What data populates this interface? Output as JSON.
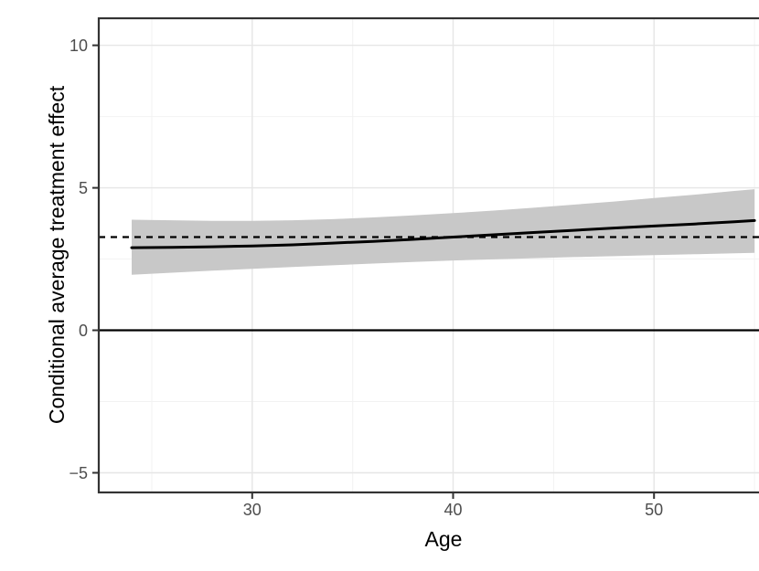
{
  "chart_data": {
    "type": "line",
    "title": "",
    "xlabel": "Age",
    "ylabel": "Conditional average treatment effect",
    "xlim": [
      22.36,
      56.68
    ],
    "ylim": [
      -5.69,
      10.95
    ],
    "x_major_ticks": [
      30,
      40,
      50
    ],
    "x_minor_ticks": [
      25,
      35,
      45,
      55
    ],
    "y_major_ticks": [
      -5,
      0,
      5,
      10
    ],
    "y_minor_ticks": [
      -2.5,
      2.5,
      7.5
    ],
    "grid": true,
    "legend": "none",
    "reference_lines": {
      "zero_line_y": 0,
      "ate_dashed_line_y": 3.27
    },
    "series": [
      {
        "name": "conditional-average-treatment-effect",
        "style": "solid",
        "x": [
          24,
          26,
          28,
          30,
          32,
          34,
          36,
          38,
          40,
          42,
          44,
          46,
          48,
          50,
          52,
          54,
          55
        ],
        "y": [
          2.9,
          2.91,
          2.93,
          2.96,
          3.0,
          3.06,
          3.12,
          3.19,
          3.27,
          3.35,
          3.43,
          3.51,
          3.59,
          3.66,
          3.73,
          3.81,
          3.85
        ]
      }
    ],
    "ribbon": {
      "name": "confidence-band",
      "x": [
        24,
        26,
        28,
        30,
        32,
        34,
        36,
        38,
        40,
        42,
        44,
        46,
        48,
        50,
        52,
        54,
        55
      ],
      "upper": [
        3.88,
        3.86,
        3.84,
        3.84,
        3.86,
        3.9,
        3.96,
        4.03,
        4.11,
        4.2,
        4.3,
        4.41,
        4.52,
        4.64,
        4.76,
        4.89,
        4.95
      ],
      "lower": [
        1.95,
        2.02,
        2.09,
        2.16,
        2.22,
        2.28,
        2.34,
        2.4,
        2.45,
        2.49,
        2.53,
        2.57,
        2.6,
        2.64,
        2.67,
        2.7,
        2.72
      ]
    },
    "colors": {
      "background": "#ffffff",
      "panel_background": "#ffffff",
      "panel_border": "#333333",
      "grid_major": "#e6e6e6",
      "grid_minor": "#f2f2f2",
      "ribbon_fill": "#c8c8c8",
      "cate_line": "#000000",
      "zero_line": "#000000",
      "dashed_line": "#000000",
      "tick_text": "#4d4d4d",
      "axis_title_text": "#000000",
      "tick_mark": "#333333"
    }
  }
}
